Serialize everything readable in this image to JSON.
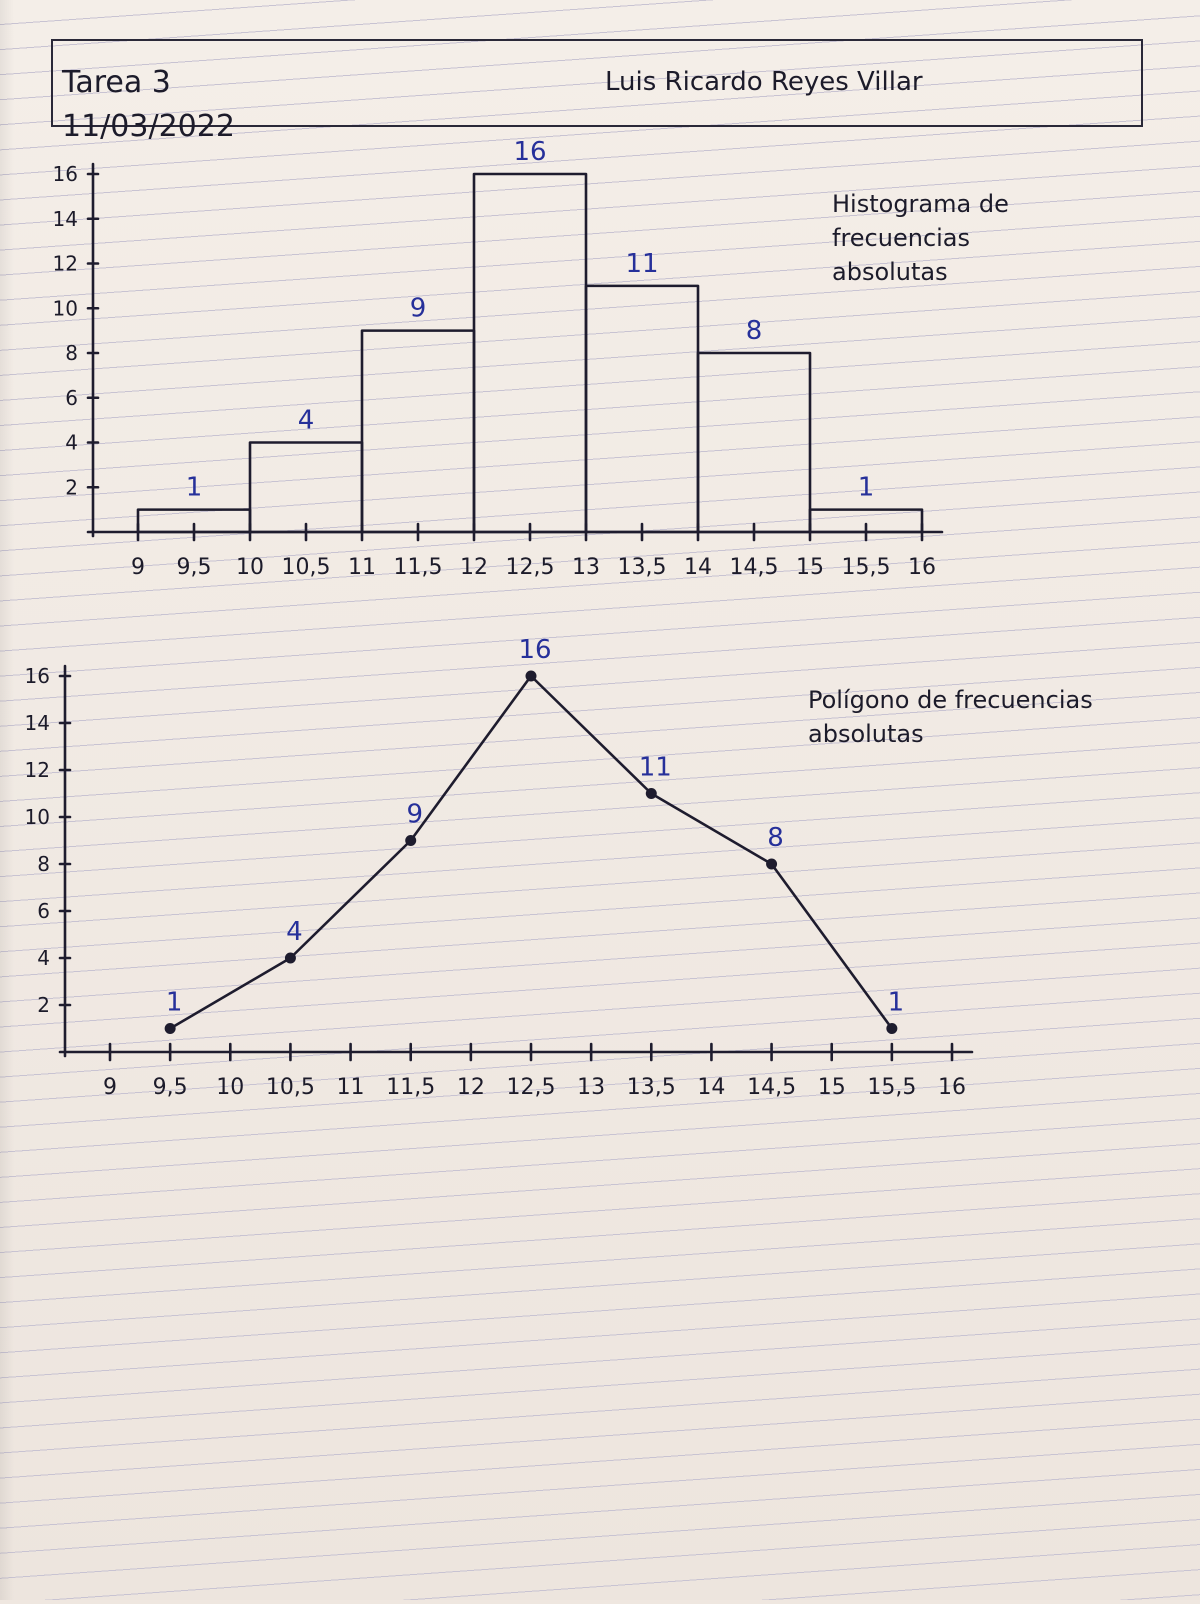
{
  "header": {
    "title": "Tarea 3",
    "date": "11/03/2022",
    "author": "Luis Ricardo Reyes Villar"
  },
  "colors": {
    "ink": "#1e1c2e",
    "blue_ink": "#26309a",
    "paper": "#f1ebe5",
    "rule": "#c8c3d2"
  },
  "chart_data": [
    {
      "type": "bar",
      "title": "Histograma de frecuencias absolutas",
      "bins": [
        [
          9,
          10
        ],
        [
          10,
          11
        ],
        [
          11,
          12
        ],
        [
          12,
          13
        ],
        [
          13,
          14
        ],
        [
          14,
          15
        ],
        [
          15,
          16
        ]
      ],
      "values": [
        1,
        4,
        9,
        16,
        11,
        8,
        1
      ],
      "value_labels": [
        "1",
        "4",
        "9",
        "16",
        "11",
        "8",
        "1"
      ],
      "x_ticks": [
        "9",
        "9,5",
        "10",
        "10,5",
        "11",
        "11,5",
        "12",
        "12,5",
        "13",
        "13,5",
        "14",
        "14,5",
        "15",
        "15,5",
        "16"
      ],
      "y_ticks": [
        "2",
        "4",
        "6",
        "8",
        "10",
        "12",
        "14",
        "16"
      ],
      "xlim": [
        9,
        16
      ],
      "ylim": [
        0,
        16
      ]
    },
    {
      "type": "line",
      "title": "Polígono de frecuencias absolutas",
      "x": [
        9.5,
        10.5,
        11.5,
        12.5,
        13.5,
        14.5,
        15.5
      ],
      "values": [
        1,
        4,
        9,
        16,
        11,
        8,
        1
      ],
      "value_labels": [
        "1",
        "4",
        "9",
        "16",
        "11",
        "8",
        "1"
      ],
      "x_ticks": [
        "9",
        "9,5",
        "10",
        "10,5",
        "11",
        "11,5",
        "12",
        "12,5",
        "13",
        "13,5",
        "14",
        "14,5",
        "15",
        "15,5",
        "16"
      ],
      "y_ticks": [
        "2",
        "4",
        "6",
        "8",
        "10",
        "12",
        "14",
        "16"
      ],
      "xlim": [
        9,
        16
      ],
      "ylim": [
        0,
        16
      ]
    }
  ]
}
